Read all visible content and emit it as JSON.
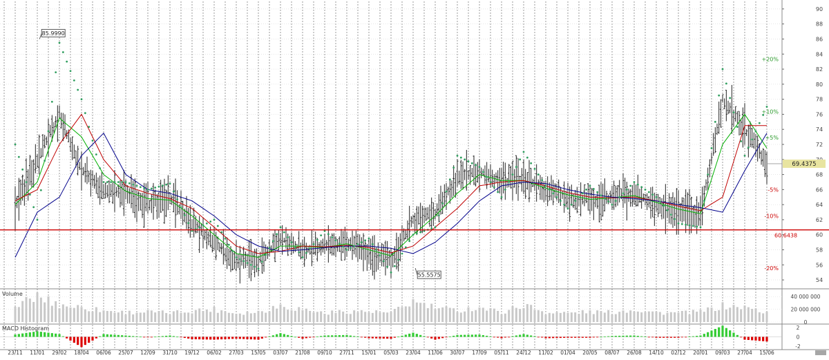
{
  "price_panel": {
    "y_ticks": [
      "54",
      "56",
      "58",
      "60",
      "62",
      "64",
      "66",
      "68",
      "70",
      "72",
      "74",
      "76",
      "78",
      "80",
      "82",
      "84",
      "86",
      "88",
      "90"
    ],
    "last_price_label": "69.4375",
    "support_label": "60.6438",
    "high_callout": "85.9990",
    "low_callout": "55.5575",
    "pct_labels": [
      "+20%",
      "+10%",
      "+5%",
      "-5%",
      "-10%",
      "-20%"
    ]
  },
  "volume_panel": {
    "title": "Volume",
    "y_ticks": [
      "40 000 000",
      "20 000 000",
      "0"
    ]
  },
  "macd_panel": {
    "title": "MACD Histogram",
    "y_ticks": [
      "2",
      "0",
      "-2"
    ]
  },
  "x_ticks": [
    "23/11",
    "11/01",
    "29/02",
    "18/04",
    "06/06",
    "25/07",
    "12/09",
    "31/10",
    "19/12",
    "06/02",
    "27/03",
    "15/05",
    "03/07",
    "21/08",
    "09/10",
    "27/11",
    "15/01",
    "05/03",
    "23/04",
    "11/06",
    "30/07",
    "17/09",
    "05/11",
    "24/12",
    "11/02",
    "01/04",
    "20/05",
    "08/07",
    "26/08",
    "14/10",
    "02/12",
    "20/01",
    "09/03",
    "27/04",
    "15/06"
  ],
  "colors": {
    "ma_short": "#00b000",
    "ma_mid": "#c00000",
    "ma_long": "#00008b",
    "sar": "#2e9e5e",
    "support_line": "#cc0000",
    "last_price_bg": "#e8e4a0",
    "macd_pos": "#33cc33",
    "macd_neg": "#dd0000",
    "volume": "#c8c8c8"
  },
  "chart_data": [
    {
      "type": "candlestick",
      "ylim": [
        53,
        91
      ],
      "x": [
        "23/11",
        "11/01",
        "29/02",
        "18/04",
        "06/06",
        "25/07",
        "12/09",
        "31/10",
        "19/12",
        "06/02",
        "27/03",
        "15/05",
        "03/07",
        "21/08",
        "09/10",
        "27/11",
        "15/01",
        "05/03",
        "23/04",
        "11/06",
        "30/07",
        "17/09",
        "05/11",
        "24/12",
        "11/02",
        "01/04",
        "20/05",
        "08/07",
        "26/08",
        "14/10",
        "02/12",
        "20/01",
        "09/03",
        "27/04",
        "15/06"
      ],
      "close": [
        63.5,
        70.0,
        76.0,
        68.5,
        66.0,
        65.5,
        64.0,
        65.0,
        61.5,
        59.0,
        56.5,
        56.5,
        59.5,
        58.0,
        58.5,
        59.0,
        57.5,
        56.5,
        62.0,
        63.0,
        67.5,
        68.5,
        67.0,
        67.5,
        66.0,
        65.0,
        64.5,
        65.0,
        65.5,
        64.0,
        63.0,
        62.5,
        78.0,
        74.0,
        69.5
      ],
      "series": [
        {
          "name": "",
          "values": [
            64.0,
            67.0,
            75.5,
            73.0,
            68.0,
            65.8,
            64.8,
            64.6,
            62.5,
            60.0,
            57.5,
            57.0,
            58.5,
            58.5,
            58.3,
            58.8,
            58.0,
            57.2,
            60.0,
            62.5,
            65.5,
            68.0,
            67.2,
            67.2,
            66.2,
            65.3,
            64.7,
            64.9,
            65.2,
            64.3,
            63.4,
            62.8,
            72.0,
            76.0,
            71.5
          ]
        },
        {
          "name": "",
          "values": [
            64.5,
            66.0,
            72.0,
            76.0,
            70.0,
            66.5,
            65.5,
            64.8,
            63.5,
            61.0,
            58.5,
            57.5,
            57.8,
            58.5,
            58.4,
            58.6,
            58.3,
            57.6,
            58.5,
            61.0,
            63.5,
            66.5,
            67.0,
            67.2,
            66.5,
            65.6,
            65.0,
            64.9,
            65.0,
            64.5,
            63.8,
            63.2,
            65.0,
            74.5,
            74.5
          ]
        },
        {
          "name": "",
          "values": [
            57.0,
            63.0,
            65.0,
            70.5,
            73.5,
            68.0,
            66.0,
            65.5,
            64.5,
            62.5,
            60.0,
            58.5,
            57.8,
            58.0,
            58.3,
            58.5,
            58.5,
            58.2,
            57.5,
            59.0,
            61.5,
            64.5,
            66.5,
            67.0,
            66.8,
            66.0,
            65.4,
            65.0,
            64.8,
            64.5,
            64.0,
            63.6,
            63.0,
            68.5,
            73.5
          ]
        }
      ],
      "parabolic_sar": [
        72.0,
        62.0,
        85.5,
        78.0,
        67.0,
        67.0,
        66.0,
        66.8,
        60.5,
        62.0,
        57.0,
        55.5,
        61.0,
        57.0,
        60.5,
        58.0,
        59.5,
        55.0,
        60.0,
        61.0,
        70.5,
        69.0,
        65.0,
        71.0,
        66.5,
        63.5,
        66.5,
        64.0,
        67.0,
        65.0,
        61.5,
        61.0,
        82.0,
        70.5,
        77.0
      ],
      "high_callout": 85.999,
      "low_callout": 55.5575,
      "last_price": 69.4375,
      "support_level": 60.6438
    },
    {
      "type": "bar",
      "title": "Volume",
      "ylim": [
        0,
        50000000
      ],
      "x": [
        "23/11",
        "11/01",
        "29/02",
        "18/04",
        "06/06",
        "25/07",
        "12/09",
        "31/10",
        "19/12",
        "06/02",
        "27/03",
        "15/05",
        "03/07",
        "21/08",
        "09/10",
        "27/11",
        "15/01",
        "05/03",
        "23/04",
        "11/06",
        "30/07",
        "17/09",
        "05/11",
        "24/12",
        "11/02",
        "01/04",
        "20/05",
        "08/07",
        "26/08",
        "14/10",
        "02/12",
        "20/01",
        "09/03",
        "27/04",
        "15/06"
      ],
      "values": [
        24000000,
        40000000,
        27000000,
        23000000,
        18000000,
        15000000,
        16000000,
        14000000,
        18000000,
        20000000,
        14000000,
        16000000,
        26000000,
        20000000,
        14000000,
        17000000,
        16000000,
        14000000,
        32000000,
        22000000,
        18000000,
        23000000,
        15000000,
        27000000,
        15000000,
        14000000,
        16000000,
        15000000,
        20000000,
        15000000,
        14000000,
        16000000,
        25000000,
        23000000,
        15000000
      ]
    },
    {
      "type": "bar",
      "title": "MACD Histogram",
      "ylim": [
        -2.6,
        2.6
      ],
      "x": [
        "23/11",
        "11/01",
        "29/02",
        "18/04",
        "06/06",
        "25/07",
        "12/09",
        "31/10",
        "19/12",
        "06/02",
        "27/03",
        "15/05",
        "03/07",
        "21/08",
        "09/10",
        "27/11",
        "15/01",
        "05/03",
        "23/04",
        "11/06",
        "30/07",
        "17/09",
        "05/11",
        "24/12",
        "11/02",
        "01/04",
        "20/05",
        "08/07",
        "26/08",
        "14/10",
        "02/12",
        "20/01",
        "09/03",
        "27/04",
        "15/06"
      ],
      "values": [
        0.5,
        1.2,
        0.6,
        -2.2,
        0.6,
        0.3,
        -0.1,
        0.3,
        -0.5,
        -0.6,
        -0.4,
        -0.6,
        0.8,
        -0.4,
        0.3,
        0.4,
        -0.3,
        -0.4,
        0.9,
        -0.6,
        0.4,
        0.5,
        -0.3,
        0.6,
        -0.3,
        -0.2,
        -0.2,
        0.2,
        0.3,
        -0.2,
        -0.2,
        0.3,
        2.4,
        -0.6,
        -1.0
      ]
    }
  ]
}
